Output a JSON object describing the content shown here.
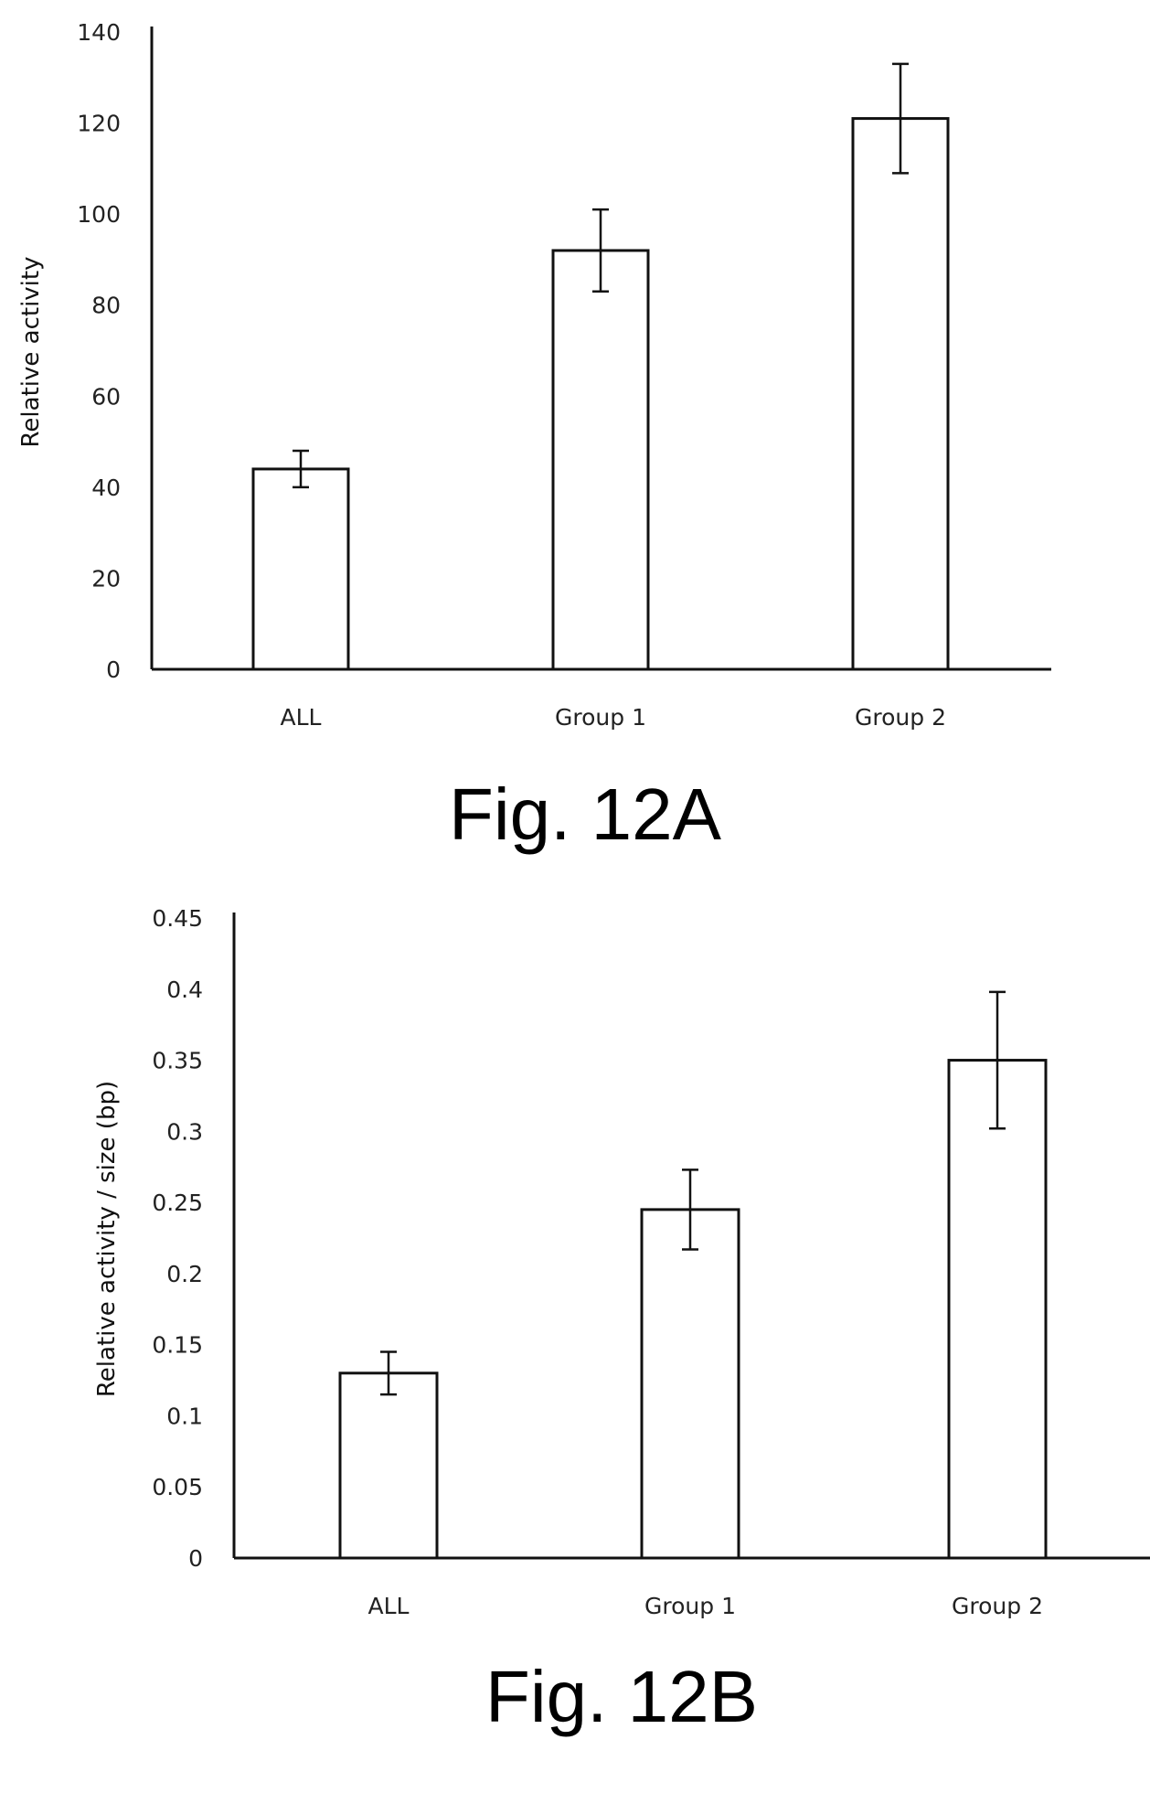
{
  "chart_data": [
    {
      "type": "bar",
      "figure_label": "Fig. 12A",
      "categories": [
        "ALL",
        "Group 1",
        "Group 2"
      ],
      "values": [
        44,
        92,
        121
      ],
      "error": [
        4,
        9,
        12
      ],
      "xlabel": "",
      "ylabel": "Relative activity",
      "ylim": [
        0,
        140
      ],
      "yticks": [
        "0",
        "20",
        "40",
        "60",
        "80",
        "100",
        "120",
        "140"
      ],
      "grid": false,
      "legend": "none"
    },
    {
      "type": "bar",
      "figure_label": "Fig. 12B",
      "categories": [
        "ALL",
        "Group 1",
        "Group 2"
      ],
      "values": [
        0.13,
        0.245,
        0.35
      ],
      "error": [
        0.015,
        0.028,
        0.048
      ],
      "xlabel": "",
      "ylabel": "Relative activity / size (bp)",
      "ylim": [
        0,
        0.45
      ],
      "yticks": [
        "0",
        "0.05",
        "0.1",
        "0.15",
        "0.2",
        "0.25",
        "0.3",
        "0.35",
        "0.4",
        "0.45"
      ],
      "grid": false,
      "legend": "none"
    }
  ]
}
